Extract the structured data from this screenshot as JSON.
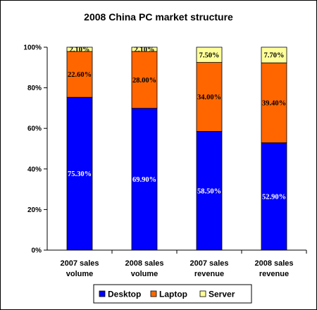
{
  "chart_data": {
    "type": "bar",
    "stacked": true,
    "title": "2008 China PC market structure",
    "categories": [
      [
        "2007 sales",
        "volume"
      ],
      [
        "2008 sales",
        "volume"
      ],
      [
        "2007 sales",
        "revenue"
      ],
      [
        "2008 sales",
        "revenue"
      ]
    ],
    "series": [
      {
        "name": "Desktop",
        "color": "#0000FF",
        "label_color": "#FFFFFF",
        "values": [
          75.3,
          69.9,
          58.5,
          52.9
        ],
        "labels": [
          "75.30%",
          "69.90%",
          "58.50%",
          "52.90%"
        ]
      },
      {
        "name": "Laptop",
        "color": "#FF6600",
        "label_color": "#000000",
        "values": [
          22.6,
          28.0,
          34.0,
          39.4
        ],
        "labels": [
          "22.60%",
          "28.00%",
          "34.00%",
          "39.40%"
        ]
      },
      {
        "name": "Server",
        "color": "#FFFF99",
        "label_color": "#000000",
        "values": [
          2.1,
          2.1,
          7.5,
          7.7
        ],
        "labels": [
          "2.10%",
          "2.10%",
          "7.50%",
          "7.70%"
        ]
      }
    ],
    "ylim": [
      0,
      100
    ],
    "yticks": [
      "0%",
      "20%",
      "40%",
      "60%",
      "80%",
      "100%"
    ],
    "grid": false,
    "legend_position": "bottom"
  }
}
